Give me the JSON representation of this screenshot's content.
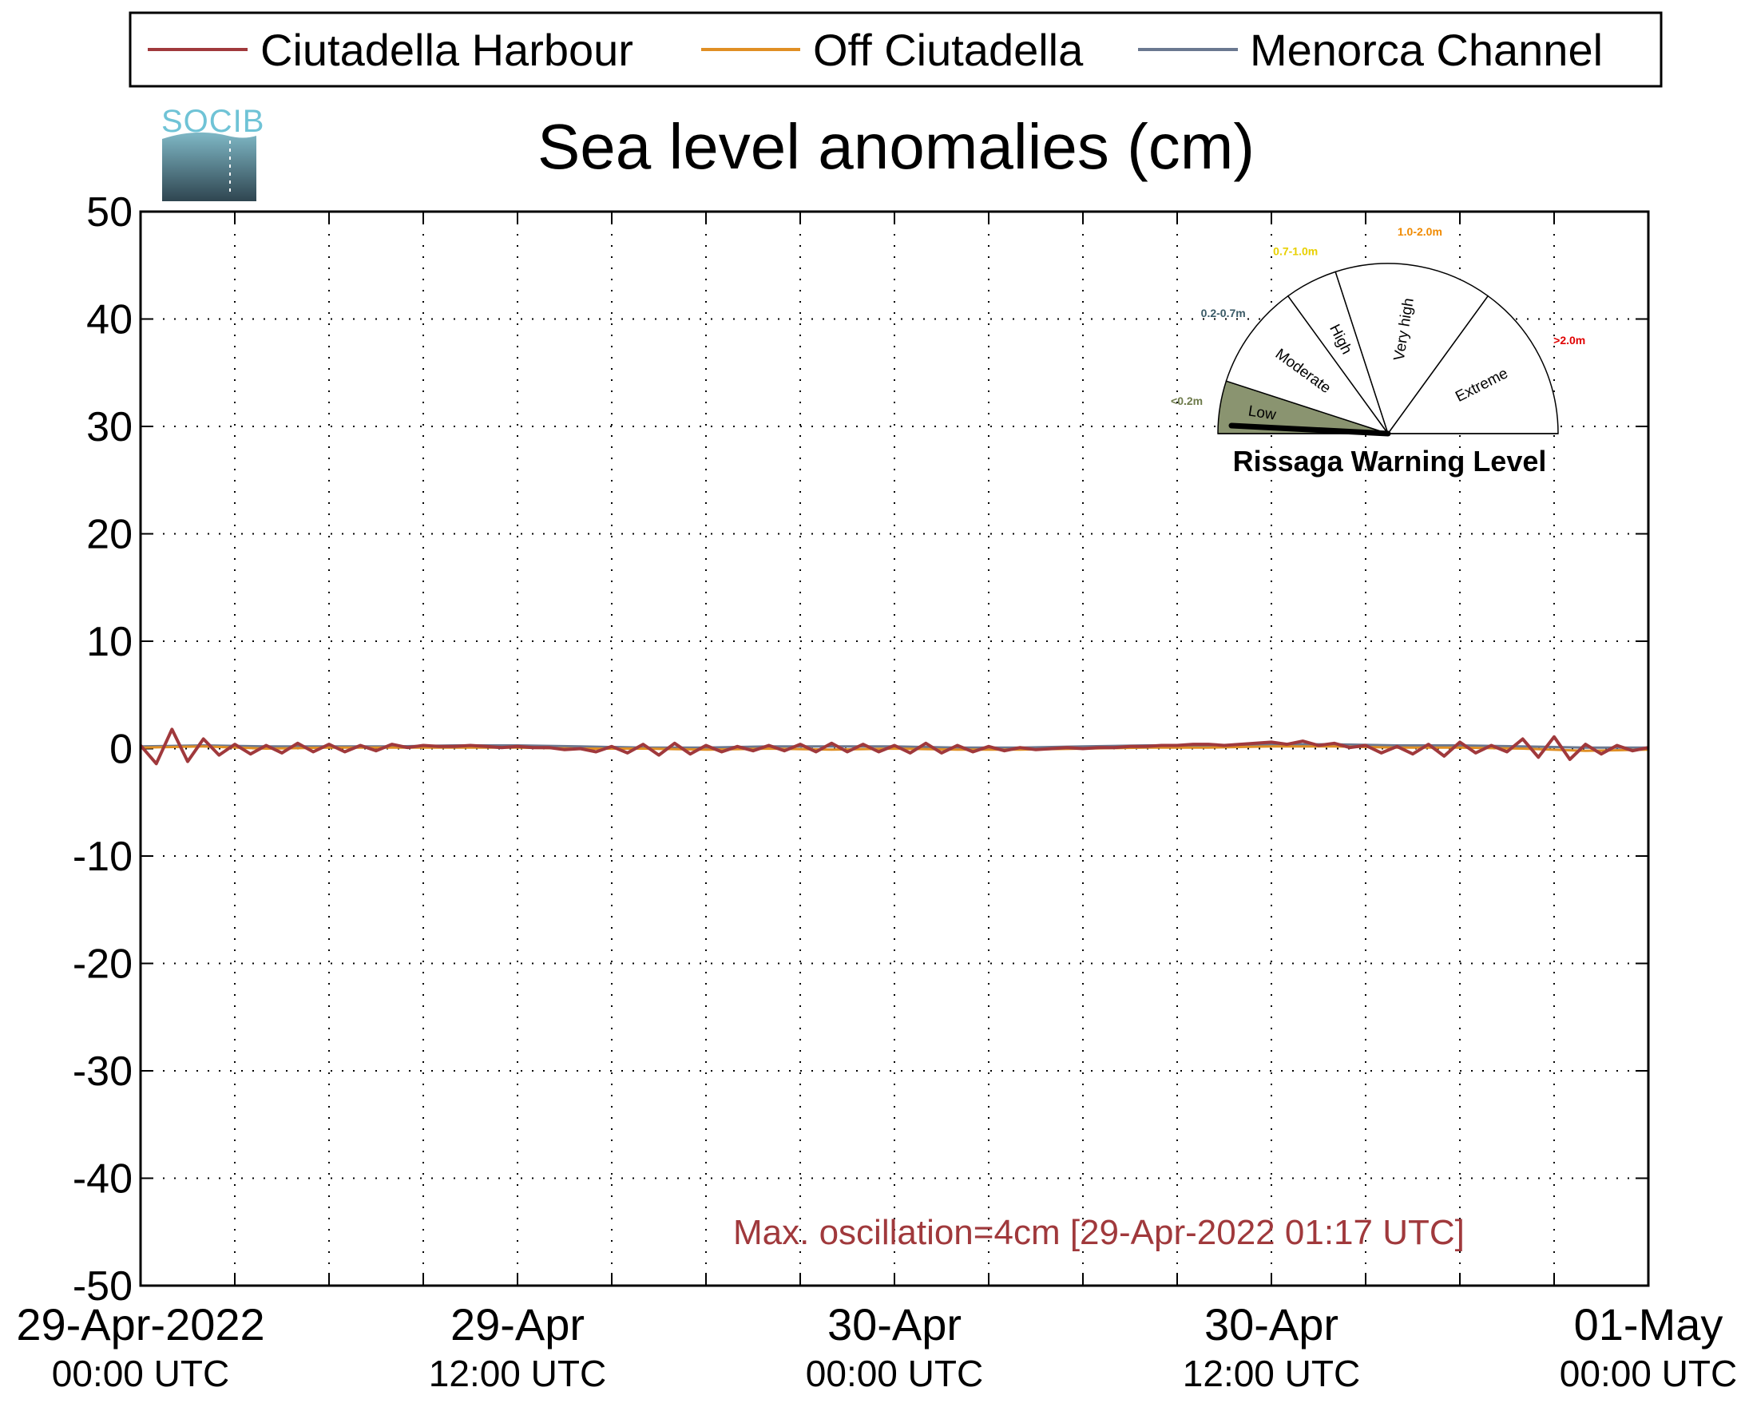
{
  "legend": {
    "items": [
      {
        "label": "Ciutadella Harbour",
        "color": "#a0393c"
      },
      {
        "label": "Off Ciutadella",
        "color": "#e08f24"
      },
      {
        "label": "Menorca Channel",
        "color": "#6a7890"
      }
    ]
  },
  "logo": {
    "text": "SOCIB"
  },
  "chart_data": {
    "type": "line",
    "title": "Sea level anomalies (cm)",
    "xlabel": "",
    "ylabel": "",
    "ylim": [
      -50,
      50
    ],
    "yticks": [
      50,
      40,
      30,
      20,
      10,
      0,
      -10,
      -20,
      -30,
      -40,
      -50
    ],
    "xrange_hours": [
      0,
      48
    ],
    "xtick_labels": [
      {
        "date": "29-Apr-2022",
        "time": "00:00 UTC"
      },
      {
        "date": "29-Apr",
        "time": "12:00 UTC"
      },
      {
        "date": "30-Apr",
        "time": "00:00 UTC"
      },
      {
        "date": "30-Apr",
        "time": "12:00 UTC"
      },
      {
        "date": "01-May",
        "time": "00:00 UTC"
      }
    ],
    "grid": true,
    "legend_position": "top",
    "series": [
      {
        "name": "Ciutadella Harbour",
        "color": "#a0393c",
        "x": [
          0,
          0.5,
          1,
          1.5,
          2,
          2.5,
          3,
          3.5,
          4,
          4.5,
          5,
          5.5,
          6,
          6.5,
          7,
          7.5,
          8,
          8.5,
          9,
          9.5,
          10,
          10.5,
          11,
          11.5,
          12,
          12.5,
          13,
          13.5,
          14,
          14.5,
          15,
          15.5,
          16,
          16.5,
          17,
          17.5,
          18,
          18.5,
          19,
          19.5,
          20,
          20.5,
          21,
          21.5,
          22,
          22.5,
          23,
          23.5,
          24,
          24.5,
          25,
          25.5,
          26,
          26.5,
          27,
          27.5,
          28,
          28.5,
          29,
          29.5,
          30,
          30.5,
          31,
          31.5,
          32,
          32.5,
          33,
          33.5,
          34,
          34.5,
          35,
          35.5,
          36,
          36.5,
          37,
          37.5,
          38,
          38.5,
          39,
          39.5,
          40,
          40.5,
          41,
          41.5,
          42,
          42.5,
          43,
          43.5,
          44,
          44.5,
          45,
          45.5,
          46,
          46.5,
          47,
          47.5,
          48
        ],
        "y": [
          0.3,
          -1.4,
          1.8,
          -1.2,
          0.9,
          -0.6,
          0.4,
          -0.5,
          0.3,
          -0.4,
          0.5,
          -0.3,
          0.4,
          -0.3,
          0.3,
          -0.2,
          0.4,
          0.1,
          0.3,
          0.2,
          0.2,
          0.3,
          0.2,
          0.1,
          0.2,
          0.1,
          0.1,
          -0.1,
          0.0,
          -0.3,
          0.2,
          -0.4,
          0.4,
          -0.6,
          0.5,
          -0.5,
          0.3,
          -0.3,
          0.2,
          -0.2,
          0.3,
          -0.2,
          0.4,
          -0.3,
          0.5,
          -0.3,
          0.4,
          -0.3,
          0.3,
          -0.4,
          0.5,
          -0.4,
          0.3,
          -0.3,
          0.2,
          -0.2,
          0.1,
          -0.1,
          0.0,
          0.1,
          0.0,
          0.1,
          0.1,
          0.2,
          0.2,
          0.3,
          0.3,
          0.4,
          0.4,
          0.3,
          0.4,
          0.5,
          0.6,
          0.4,
          0.7,
          0.3,
          0.5,
          0.1,
          0.3,
          -0.4,
          0.2,
          -0.5,
          0.4,
          -0.7,
          0.6,
          -0.4,
          0.3,
          -0.3,
          0.9,
          -0.8,
          1.1,
          -1.0,
          0.4,
          -0.5,
          0.3,
          -0.2,
          0.1
        ]
      },
      {
        "name": "Off Ciutadella",
        "color": "#e08f24",
        "x": [
          0,
          2,
          4,
          6,
          8,
          10,
          12,
          14,
          16,
          18,
          20,
          22,
          24,
          26,
          28,
          30,
          32,
          34,
          36,
          38,
          40,
          42,
          44,
          46,
          48
        ],
        "y": [
          0.1,
          0.2,
          0.0,
          0.1,
          0.1,
          0.1,
          0.1,
          0.0,
          0.0,
          -0.1,
          0.0,
          -0.1,
          0.0,
          -0.1,
          -0.1,
          0.0,
          0.1,
          0.1,
          0.2,
          0.2,
          0.1,
          0.1,
          0.0,
          -0.2,
          -0.1
        ]
      },
      {
        "name": "Menorca Channel",
        "color": "#6a7890",
        "x": [
          0,
          2,
          4,
          6,
          8,
          10,
          12,
          14,
          16,
          18,
          20,
          22,
          24,
          26,
          28,
          30,
          32,
          34,
          36,
          38,
          40,
          42,
          44,
          46,
          48
        ],
        "y": [
          0.2,
          0.3,
          0.2,
          0.2,
          0.2,
          0.3,
          0.3,
          0.2,
          0.1,
          0.1,
          0.2,
          0.2,
          0.2,
          0.1,
          0.1,
          0.2,
          0.3,
          0.3,
          0.4,
          0.4,
          0.3,
          0.3,
          0.2,
          0.1,
          0.1
        ]
      }
    ],
    "annotation": {
      "text": "Max. oscillation=4cm [29-Apr-2022 01:17 UTC]",
      "color": "#a0393c"
    }
  },
  "gauge": {
    "title": "Rissaga Warning Level",
    "active_sector": "Low",
    "active_color": "#8a9470",
    "sectors": [
      {
        "label": "Low",
        "range": "<0.2m",
        "range_color": "#6d7a4a"
      },
      {
        "label": "Moderate",
        "range": "0.2-0.7m",
        "range_color": "#3a5a66"
      },
      {
        "label": "High",
        "range": "0.7-1.0m",
        "range_color": "#e8d000"
      },
      {
        "label": "Very high",
        "range": "1.0-2.0m",
        "range_color": "#f08a00"
      },
      {
        "label": "Extreme",
        "range": ">2.0m",
        "range_color": "#e00000"
      }
    ]
  }
}
